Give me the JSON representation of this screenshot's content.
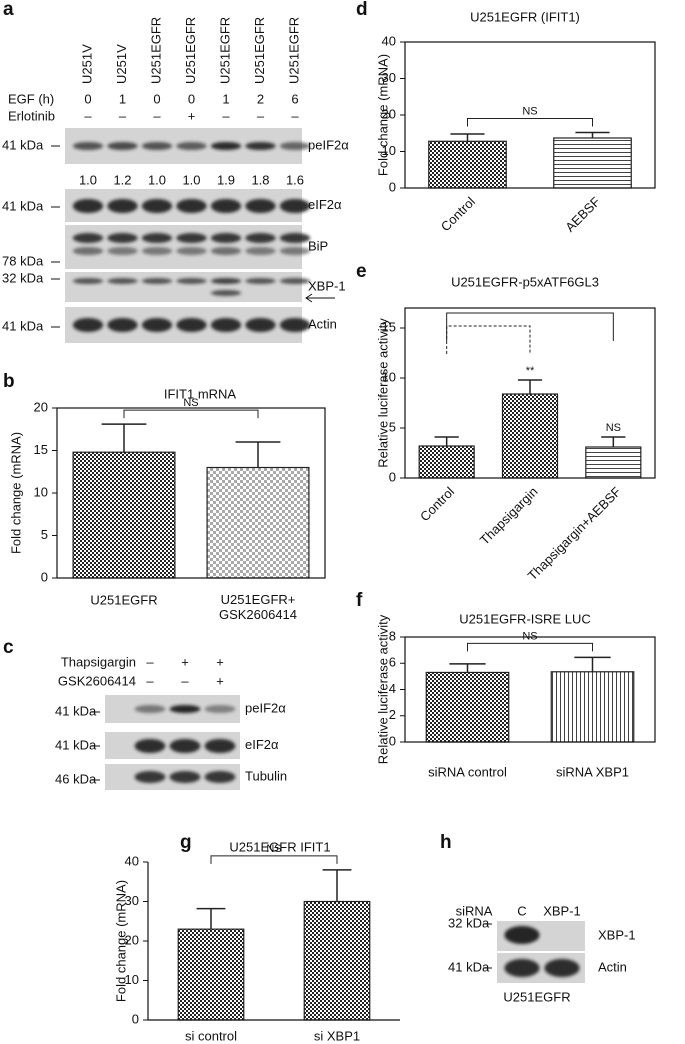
{
  "chart_data": [
    {
      "type": "bar",
      "panel": "b",
      "title": "IFIT1 mRNA",
      "y_label": "Fold change (mRNA)",
      "categories": [
        "U251EGFR",
        "U251EGFR+\nGSK2606414"
      ],
      "values": [
        14.8,
        13.0
      ],
      "errors": [
        3.3,
        3.0
      ],
      "patterns": [
        "checker-dark",
        "checker-light"
      ],
      "ylim": [
        0,
        20
      ],
      "yticks": [
        0,
        5,
        10,
        15,
        20
      ],
      "comparison": "NS"
    },
    {
      "type": "bar",
      "panel": "d",
      "title": "U251EGFR (IFIT1)",
      "y_label": "Fold change (mRNA)",
      "categories": [
        "Control",
        "AEBSF"
      ],
      "values": [
        12.8,
        13.7
      ],
      "errors": [
        2.0,
        1.5
      ],
      "patterns": [
        "checker-dark",
        "hlines"
      ],
      "ylim": [
        0,
        40
      ],
      "yticks": [
        0,
        10,
        20,
        30,
        40
      ],
      "comparison": "NS",
      "label_rotation": -45
    },
    {
      "type": "bar",
      "panel": "e",
      "title": "U251EGFR-p5xATF6GL3",
      "y_label": "Relative luciferase activity",
      "categories": [
        "Control",
        "Thapsigargin",
        "Thapsigargin+AEBSF"
      ],
      "values": [
        3.2,
        8.4,
        3.1
      ],
      "errors": [
        0.9,
        1.4,
        1.0
      ],
      "patterns": [
        "checker-dark",
        "checker-dark",
        "hlines"
      ],
      "ylim": [
        0,
        17
      ],
      "yticks": [
        0,
        5,
        10,
        15
      ],
      "bar_labels": [
        null,
        "**",
        "NS"
      ],
      "label_rotation": -45
    },
    {
      "type": "bar",
      "panel": "f",
      "title": "U251EGFR-ISRE LUC",
      "y_label": "Relative luciferase activity",
      "categories": [
        "siRNA control",
        "siRNA XBP1"
      ],
      "values": [
        5.3,
        5.35
      ],
      "errors": [
        0.65,
        1.1
      ],
      "patterns": [
        "checker-dark",
        "vlines"
      ],
      "ylim": [
        0,
        8
      ],
      "yticks": [
        0,
        2,
        4,
        6,
        8
      ],
      "comparison": "NS"
    },
    {
      "type": "bar",
      "panel": "g",
      "title": "U251EGFR IFIT1",
      "y_label": "Fold change (mRNA)",
      "categories": [
        "si control",
        "si XBP1"
      ],
      "values": [
        23,
        30
      ],
      "errors": [
        5.2,
        8.0
      ],
      "patterns": [
        "checker-dark",
        "checker-dark"
      ],
      "ylim": [
        0,
        40
      ],
      "yticks": [
        0,
        10,
        20,
        30,
        40
      ],
      "comparison": "NS"
    }
  ],
  "blots": {
    "a": {
      "panel": "a",
      "lanes": [
        "U251V",
        "U251V",
        "U251EGFR",
        "U251EGFR",
        "U251EGFR",
        "U251EGFR",
        "U251EGFR"
      ],
      "conditions": [
        {
          "label": "EGF (h)",
          "values": [
            "0",
            "1",
            "0",
            "0",
            "1",
            "2",
            "6"
          ]
        },
        {
          "label": "Erlotinib",
          "values": [
            "–",
            "–",
            "–",
            "+",
            "–",
            "–",
            "–"
          ]
        }
      ],
      "rows": [
        {
          "marker": "41 kDa",
          "label": "peIF2α",
          "quantification": [
            "1.0",
            "1.2",
            "1.0",
            "1.0",
            "1.9",
            "1.8",
            "1.6"
          ]
        },
        {
          "marker": "41 kDa",
          "label": "eIF2α"
        },
        {
          "marker": "78 kDa",
          "label": "BiP"
        },
        {
          "marker": "32 kDa",
          "label": "XBP-1"
        },
        {
          "marker": "41 kDa",
          "label": "Actin"
        }
      ]
    },
    "c": {
      "panel": "c",
      "conditions": [
        {
          "label": "Thapsigargin",
          "values": [
            "–",
            "+",
            "+"
          ]
        },
        {
          "label": "GSK2606414",
          "values": [
            "–",
            "–",
            "+"
          ]
        }
      ],
      "rows": [
        {
          "marker": "41 kDa",
          "label": "peIF2α"
        },
        {
          "marker": "41 kDa",
          "label": "eIF2α"
        },
        {
          "marker": "46 kDa",
          "label": "Tubulin"
        }
      ]
    },
    "h": {
      "panel": "h",
      "lanes_label": "siRNA",
      "lanes": [
        "C",
        "XBP-1"
      ],
      "rows": [
        {
          "marker": "32 kDa",
          "label": "XBP-1"
        },
        {
          "marker": "41 kDa",
          "label": "Actin"
        }
      ],
      "footer": "U251EGFR"
    }
  }
}
